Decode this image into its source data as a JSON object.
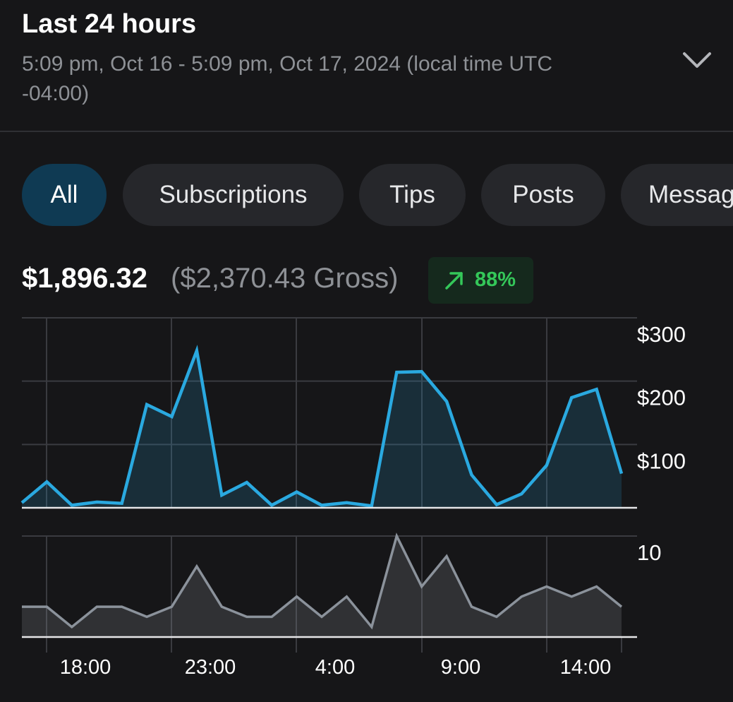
{
  "header": {
    "title": "Last 24 hours",
    "range": "5:09 pm, Oct 16 - 5:09 pm, Oct 17, 2024 (local time UTC -04:00)"
  },
  "tabs": [
    {
      "label": "All",
      "active": true
    },
    {
      "label": "Subscriptions",
      "active": false
    },
    {
      "label": "Tips",
      "active": false
    },
    {
      "label": "Posts",
      "active": false
    },
    {
      "label": "Messag",
      "active": false
    }
  ],
  "summary": {
    "net": "$1,896.32",
    "gross": "($2,370.43 Gross)",
    "change": "88%",
    "change_icon": "arrow-up-right-icon",
    "change_color": "#34c759"
  },
  "chart_data": [
    {
      "type": "area",
      "ylabel": "",
      "ylim": [
        0,
        300
      ],
      "y_ticks": [
        "$300",
        "$200",
        "$100"
      ],
      "x_ticks": [
        "18:00",
        "23:00",
        "4:00",
        "9:00",
        "14:00"
      ],
      "color": "#2aa9e0",
      "values": [
        8,
        41,
        4,
        9,
        7,
        163,
        144,
        248,
        20,
        40,
        4,
        25,
        4,
        8,
        3,
        214,
        215,
        168,
        52,
        5,
        22,
        67,
        174,
        187,
        54
      ]
    },
    {
      "type": "area",
      "ylabel": "",
      "ylim": [
        0,
        10
      ],
      "y_ticks": [
        "10"
      ],
      "x_ticks": [
        "18:00",
        "23:00",
        "4:00",
        "9:00",
        "14:00"
      ],
      "color": "#8b929b",
      "values": [
        3,
        3,
        1,
        3,
        3,
        2,
        3,
        7,
        3,
        2,
        2,
        4,
        2,
        4,
        1,
        10,
        5,
        8,
        3,
        2,
        4,
        5,
        4,
        5,
        3
      ]
    }
  ]
}
